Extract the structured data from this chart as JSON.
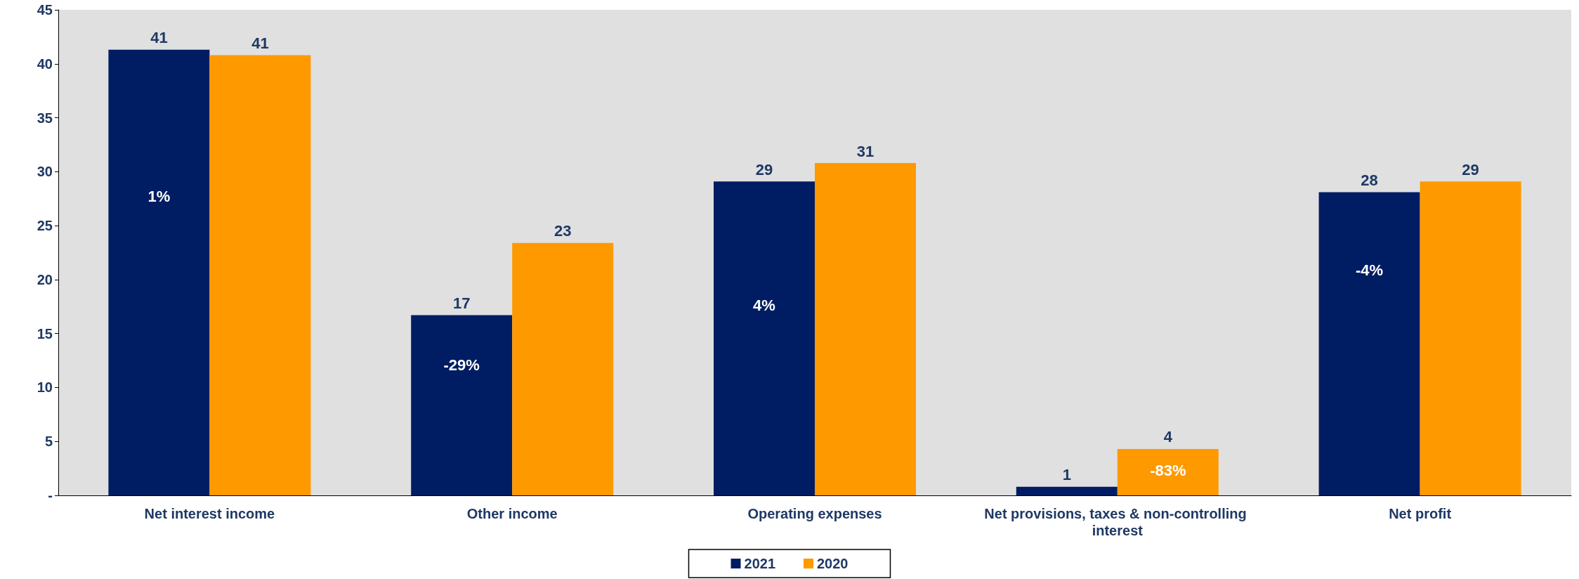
{
  "chart_data": {
    "type": "bar",
    "categories": [
      "Net interest income",
      "Other income",
      "Operating expenses",
      "Net provisions, taxes & non-controlling interest",
      "Net profit"
    ],
    "series": [
      {
        "name": "2021",
        "color": "#001d63",
        "values": [
          41.3,
          16.7,
          29.1,
          0.8,
          28.1
        ],
        "value_labels": [
          "41",
          "17",
          "29",
          "1",
          "28"
        ]
      },
      {
        "name": "2020",
        "color": "#ff9900",
        "values": [
          40.8,
          23.4,
          30.8,
          4.3,
          29.1
        ],
        "value_labels": [
          "41",
          "23",
          "31",
          "4",
          "29"
        ]
      }
    ],
    "annotations": [
      {
        "text": "1%",
        "x": "Net interest income",
        "y": 27.7
      },
      {
        "text": "-29%",
        "x": "Other income",
        "y": 12.1
      },
      {
        "text": "4%",
        "x": "Operating expenses",
        "y": 17.6
      },
      {
        "text": "-83%",
        "x": "Net provisions, taxes & non-controlling interest",
        "y": 2.3
      },
      {
        "text": "-4%",
        "x": "Net profit",
        "y": 20.9
      }
    ],
    "ylim": [
      0,
      45
    ],
    "yticks": [
      {
        "value": 0,
        "label": "-"
      },
      5,
      10,
      15,
      20,
      25,
      30,
      35,
      40,
      45
    ],
    "legend": "bottom"
  }
}
